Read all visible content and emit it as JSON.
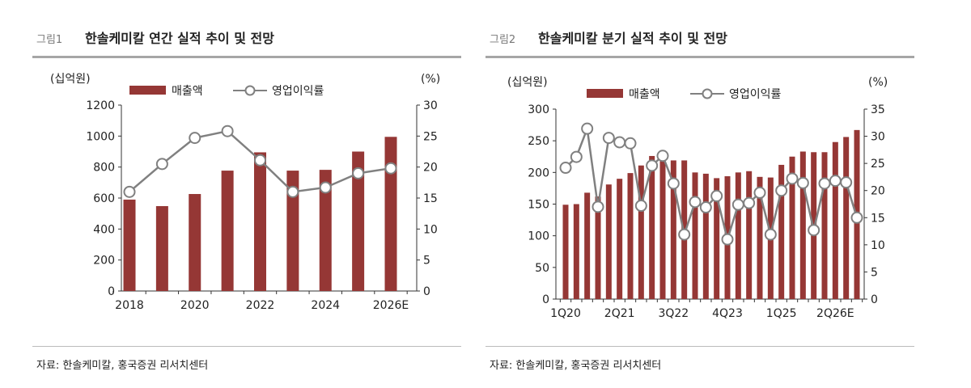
{
  "colors": {
    "bar": "#953735",
    "line": "#808080",
    "rule": "#a6a6a6"
  },
  "chart_data": [
    {
      "type": "bar+line",
      "figure_label": "그림1",
      "title": "한솔케미칼 연간 실적 추이 및 전망",
      "left_unit": "(십억원)",
      "right_unit": "(%)",
      "source": "자료: 한솔케미칼, 홍국증권 리서치센터",
      "categories": [
        "2018",
        "2019",
        "2020",
        "2021",
        "2022",
        "2023",
        "2024",
        "2025",
        "2026E"
      ],
      "x_tick_labels": [
        "2018",
        "",
        "2020",
        "",
        "2022",
        "",
        "2024",
        "",
        "2026E"
      ],
      "ylim_left": [
        0,
        1200
      ],
      "yticks_left": [
        0,
        200,
        400,
        600,
        800,
        1000,
        1200
      ],
      "ylim_right": [
        0,
        30
      ],
      "yticks_right": [
        0,
        5,
        10,
        15,
        20,
        25,
        30
      ],
      "grid": false,
      "legend_placement": "top",
      "series": [
        {
          "name": "매출액",
          "type": "bar",
          "axis": "left",
          "values": [
            590,
            548,
            626,
            777,
            895,
            777,
            782,
            900,
            995
          ]
        },
        {
          "name": "영업이익률",
          "type": "line",
          "axis": "right",
          "values": [
            16.0,
            20.5,
            24.7,
            25.8,
            21.1,
            16.0,
            16.7,
            19.0,
            19.8
          ]
        }
      ]
    },
    {
      "type": "bar+line",
      "figure_label": "그림2",
      "title": "한솔케미칼 분기 실적 추이 및 전망",
      "left_unit": "(십억원)",
      "right_unit": "(%)",
      "source": "자료: 한솔케미칼, 홍국증권 리서치센터",
      "categories": [
        "1Q20",
        "2Q20",
        "3Q20",
        "4Q20",
        "1Q21",
        "2Q21",
        "3Q21",
        "4Q21",
        "1Q22",
        "2Q22",
        "3Q22",
        "4Q22",
        "1Q23",
        "2Q23",
        "3Q23",
        "4Q23",
        "1Q24",
        "2Q24",
        "3Q24",
        "4Q24",
        "1Q25",
        "2Q25",
        "3Q25",
        "4Q25",
        "1Q26E",
        "2Q26E",
        "3Q26E",
        "4Q26E"
      ],
      "x_tick_labels": [
        "1Q20",
        "",
        "",
        "",
        "",
        "2Q21",
        "",
        "",
        "",
        "",
        "3Q22",
        "",
        "",
        "",
        "",
        "4Q23",
        "",
        "",
        "",
        "",
        "1Q25",
        "",
        "",
        "",
        "",
        "2Q26E",
        "",
        ""
      ],
      "ylim_left": [
        0,
        300
      ],
      "yticks_left": [
        0,
        50,
        100,
        150,
        200,
        250,
        300
      ],
      "ylim_right": [
        0,
        35
      ],
      "yticks_right": [
        0,
        5,
        10,
        15,
        20,
        25,
        30,
        35
      ],
      "grid": false,
      "legend_placement": "top",
      "series": [
        {
          "name": "매출액",
          "type": "bar",
          "axis": "left",
          "values": [
            149,
            150,
            168,
            162,
            181,
            190,
            199,
            211,
            226,
            222,
            219,
            219,
            200,
            198,
            191,
            194,
            200,
            202,
            193,
            192,
            212,
            225,
            233,
            232,
            232,
            248,
            256,
            267
          ]
        },
        {
          "name": "영업이익률",
          "type": "line",
          "axis": "right",
          "values": [
            24.2,
            26.2,
            31.4,
            17.0,
            29.7,
            28.9,
            28.7,
            17.2,
            24.6,
            26.4,
            21.3,
            11.9,
            17.9,
            16.9,
            19.0,
            11.0,
            17.4,
            17.7,
            19.6,
            11.9,
            20.0,
            22.2,
            21.4,
            12.7,
            21.3,
            21.8,
            21.5,
            15.0
          ]
        }
      ]
    }
  ]
}
